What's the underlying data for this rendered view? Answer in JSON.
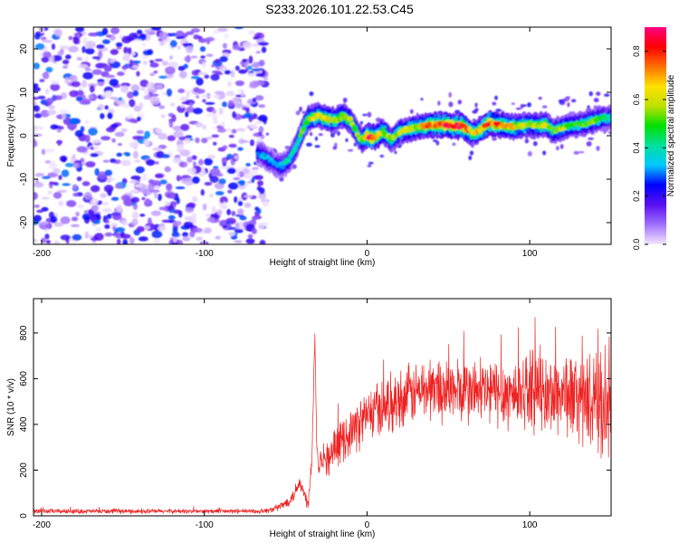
{
  "title": "S233.2026.101.22.53.C45",
  "chart_data": [
    {
      "type": "heatmap",
      "title": "S233.2026.101.22.53.C45",
      "xlabel": "Height of straight line (km)",
      "ylabel": "Frequency (Hz)",
      "xlim": [
        -205,
        150
      ],
      "ylim": [
        -25,
        25
      ],
      "x_ticks": [
        -200,
        -100,
        0,
        100
      ],
      "x_tick_labels": [
        "-200",
        "-100",
        "0",
        "100"
      ],
      "y_ticks": [
        -20,
        -10,
        0,
        10,
        20
      ],
      "y_tick_labels": [
        "-20",
        "-10",
        "0",
        "10",
        "20"
      ],
      "colorbar": {
        "label": "Normalized spectral amplitude",
        "range": [
          0,
          0.9
        ],
        "ticks": [
          0,
          0.2,
          0.4,
          0.6,
          0.8
        ],
        "tick_labels": [
          "0.0",
          "0.2",
          "0.4",
          "0.6",
          "0.8"
        ],
        "colors": [
          "#f2e6ff",
          "#a070ff",
          "#5a10f0",
          "#0000ff",
          "#00c8ff",
          "#00e0a0",
          "#00e000",
          "#c0e000",
          "#ffe000",
          "#ff7000",
          "#ff0000",
          "#ff0080"
        ]
      },
      "noise_region_km": [
        -205,
        -62
      ],
      "signal_trace": {
        "x": [
          -67,
          -62,
          -57,
          -52,
          -48,
          -44,
          -40,
          -36,
          -30,
          -25,
          -20,
          -15,
          -10,
          -6,
          -3,
          0,
          3,
          6,
          10,
          15,
          20,
          25,
          30,
          40,
          50,
          60,
          65,
          70,
          75,
          80,
          90,
          100,
          110,
          115,
          120,
          125,
          130,
          135,
          140,
          145,
          150
        ],
        "y": [
          -4,
          -5,
          -6.5,
          -7,
          -5.5,
          -3,
          1,
          4,
          4.5,
          4,
          3.5,
          4.5,
          3.5,
          0.5,
          -1,
          0,
          -0.5,
          0,
          1,
          -1,
          1,
          1.5,
          2,
          2.5,
          2.5,
          2,
          0.5,
          1.5,
          3,
          2.5,
          2,
          2.5,
          2.5,
          1,
          2,
          2.5,
          2.5,
          3,
          3.5,
          4,
          4
        ],
        "amplitude": [
          0.3,
          0.35,
          0.3,
          0.35,
          0.4,
          0.4,
          0.5,
          0.55,
          0.6,
          0.65,
          0.6,
          0.55,
          0.6,
          0.5,
          0.55,
          0.75,
          0.85,
          0.7,
          0.6,
          0.5,
          0.55,
          0.6,
          0.6,
          0.75,
          0.8,
          0.85,
          0.6,
          0.7,
          0.8,
          0.75,
          0.65,
          0.55,
          0.6,
          0.5,
          0.55,
          0.5,
          0.45,
          0.5,
          0.5,
          0.45,
          0.4
        ]
      }
    },
    {
      "type": "line",
      "xlabel": "Height of straight line (km)",
      "ylabel": "SNR (10 * v/v)",
      "xlim": [
        -205,
        150
      ],
      "ylim": [
        0,
        950
      ],
      "x_ticks": [
        -200,
        -100,
        0,
        100
      ],
      "x_tick_labels": [
        "-200",
        "-100",
        "0",
        "100"
      ],
      "y_ticks": [
        0,
        200,
        400,
        600,
        800
      ],
      "y_tick_labels": [
        "0",
        "200",
        "400",
        "600",
        "800"
      ],
      "series": [
        {
          "name": "SNR",
          "color": "#ee2222",
          "x": [
            -205,
            -150,
            -100,
            -65,
            -60,
            -55,
            -50,
            -45,
            -42,
            -40,
            -38,
            -36,
            -34,
            -32,
            -31,
            -30,
            -28,
            -25,
            -20,
            -15,
            -10,
            -5,
            0,
            10,
            20,
            30,
            40,
            50,
            60,
            70,
            80,
            90,
            100,
            110,
            120,
            130,
            140,
            150
          ],
          "y": [
            20,
            20,
            20,
            20,
            25,
            35,
            55,
            90,
            150,
            120,
            80,
            60,
            250,
            800,
            350,
            200,
            280,
            240,
            290,
            330,
            370,
            400,
            440,
            480,
            510,
            540,
            560,
            550,
            540,
            545,
            540,
            535,
            560,
            520,
            540,
            510,
            490,
            470
          ],
          "spread": [
            12,
            12,
            12,
            12,
            14,
            18,
            25,
            35,
            50,
            45,
            40,
            35,
            60,
            50,
            70,
            70,
            80,
            90,
            100,
            110,
            120,
            130,
            140,
            150,
            155,
            160,
            170,
            170,
            175,
            180,
            185,
            190,
            200,
            210,
            220,
            230,
            250,
            260
          ]
        }
      ]
    }
  ]
}
